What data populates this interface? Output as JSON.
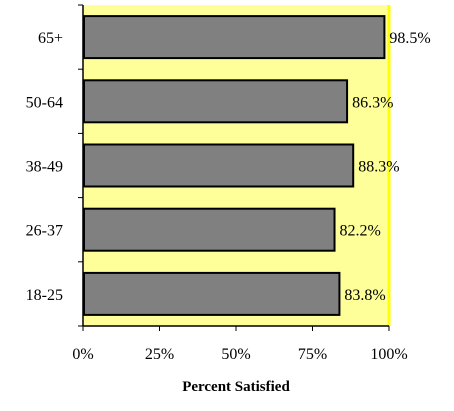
{
  "chart_data": {
    "type": "bar",
    "orientation": "horizontal",
    "categories": [
      "65+",
      "50-64",
      "38-49",
      "26-37",
      "18-25"
    ],
    "values": [
      98.5,
      86.3,
      88.3,
      82.2,
      83.8
    ],
    "value_labels": [
      "98.5%",
      "86.3%",
      "88.3%",
      "82.2%",
      "83.8%"
    ],
    "xlabel": "Percent Satisfied",
    "ylabel": "",
    "xlim": [
      0,
      100
    ],
    "x_ticks": [
      0,
      25,
      50,
      75,
      100
    ],
    "x_tick_labels": [
      "0%",
      "25%",
      "50%",
      "75%",
      "100%"
    ],
    "grid": false,
    "colors": {
      "plot_background": "#ffff99",
      "bar_fill": "#808080",
      "bar_stroke": "#000000",
      "right_border": "#ffff00",
      "axis": "#000000"
    }
  }
}
